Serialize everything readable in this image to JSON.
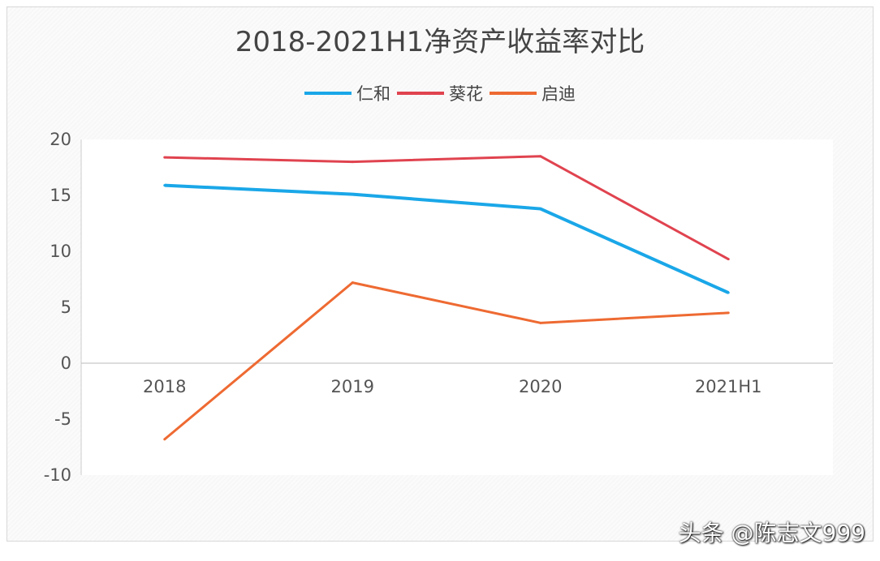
{
  "chart_data": {
    "type": "line",
    "title": "2018-2021H1净资产收益率对比",
    "categories": [
      "2018",
      "2019",
      "2020",
      "2021H1"
    ],
    "series": [
      {
        "name": "仁和",
        "color": "#1aa7e8",
        "values": [
          15.9,
          15.1,
          13.8,
          6.3
        ]
      },
      {
        "name": "葵花",
        "color": "#e0434f",
        "values": [
          18.4,
          18.0,
          18.5,
          9.3
        ]
      },
      {
        "name": "启迪",
        "color": "#ee6a32",
        "values": [
          -6.8,
          7.2,
          3.6,
          4.5
        ]
      }
    ],
    "ylim": [
      -10,
      20
    ],
    "yticks": [
      "20",
      "15",
      "10",
      "5",
      "0",
      "-5",
      "-10"
    ],
    "ytick_values": [
      20,
      15,
      10,
      5,
      0,
      -5,
      -10
    ],
    "grid": false,
    "legend_position": "top"
  },
  "watermark": "头条 @陈志文999"
}
